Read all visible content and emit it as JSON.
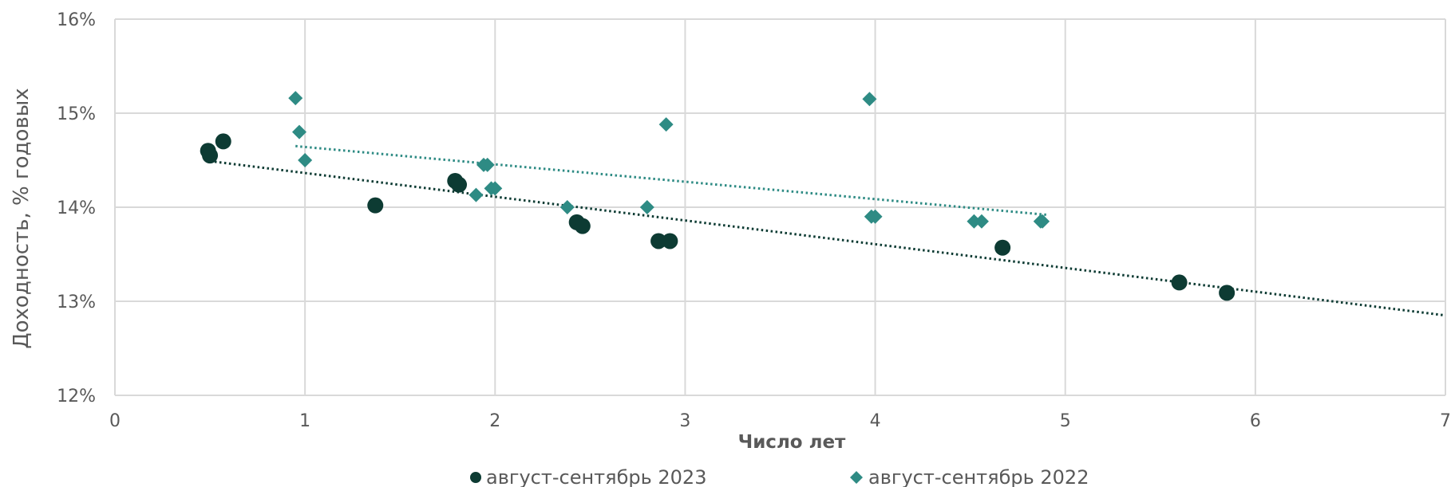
{
  "chart_data": {
    "type": "scatter",
    "xlabel": "Число лет",
    "ylabel": "Доходность, % годовых",
    "xlim": [
      0,
      7
    ],
    "ylim": [
      0.12,
      0.16
    ],
    "x_ticks": [
      0,
      1,
      2,
      3,
      4,
      5,
      6,
      7
    ],
    "y_ticks": [
      0.12,
      0.13,
      0.14,
      0.15,
      0.16
    ],
    "x_tick_labels": [
      "0",
      "1",
      "2",
      "3",
      "4",
      "5",
      "6",
      "7"
    ],
    "y_tick_labels": [
      "12%",
      "13%",
      "14%",
      "15%",
      "16%"
    ],
    "grid": true,
    "legend_position": "bottom",
    "series": [
      {
        "name": "август-сентябрь 2023",
        "marker": "circle",
        "color": "#0d3b33",
        "points": [
          [
            0.49,
            0.146
          ],
          [
            0.5,
            0.1455
          ],
          [
            0.57,
            0.147
          ],
          [
            1.37,
            0.1402
          ],
          [
            1.79,
            0.1428
          ],
          [
            1.81,
            0.1424
          ],
          [
            2.43,
            0.1384
          ],
          [
            2.46,
            0.138
          ],
          [
            2.86,
            0.1364
          ],
          [
            2.92,
            0.1364
          ],
          [
            4.67,
            0.1357
          ],
          [
            5.6,
            0.132
          ],
          [
            5.85,
            0.1309
          ]
        ],
        "trendline": {
          "style": "dotted",
          "x": [
            0.5,
            7
          ],
          "y": [
            0.1449,
            0.1285
          ]
        }
      },
      {
        "name": "август-сентябрь 2022",
        "marker": "diamond",
        "color": "#2e8b84",
        "points": [
          [
            0.95,
            0.1516
          ],
          [
            0.97,
            0.148
          ],
          [
            1.0,
            0.145
          ],
          [
            1.9,
            0.1413
          ],
          [
            1.94,
            0.1445
          ],
          [
            1.96,
            0.1445
          ],
          [
            1.98,
            0.142
          ],
          [
            2.0,
            0.142
          ],
          [
            2.38,
            0.14
          ],
          [
            2.8,
            0.14
          ],
          [
            2.9,
            0.1488
          ],
          [
            3.97,
            0.1515
          ],
          [
            3.98,
            0.139
          ],
          [
            4.0,
            0.139
          ],
          [
            4.52,
            0.1385
          ],
          [
            4.56,
            0.1385
          ],
          [
            4.87,
            0.1385
          ],
          [
            4.88,
            0.1385
          ]
        ],
        "trendline": {
          "style": "dotted",
          "x": [
            0.95,
            4.9
          ],
          "y": [
            0.1465,
            0.1392
          ]
        }
      }
    ]
  }
}
